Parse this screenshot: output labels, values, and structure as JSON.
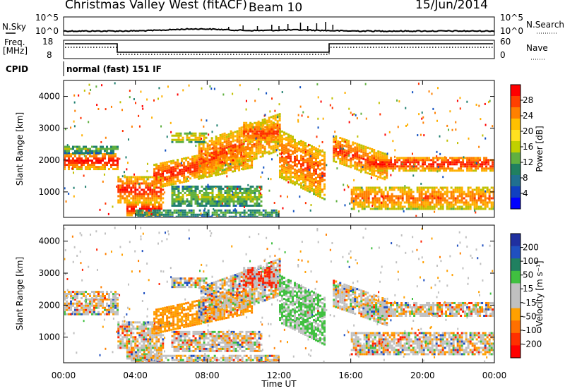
{
  "header": {
    "station": "Christmas Valley West (fitACF)",
    "beam": "Beam 10",
    "date": "15/Jun/2014"
  },
  "top_panels": {
    "nsky_label": "N.Sky",
    "nsky_ticks": [
      "10^5",
      "10^0"
    ],
    "nsearch_label": "N.Search",
    "nsearch_ticks": [
      "10^5",
      "10^0"
    ],
    "freq_label_line1": "Freq.",
    "freq_label_line2": "[MHz]",
    "freq_ticks": [
      "18",
      "8"
    ],
    "nave_label": "Nave",
    "nave_ticks": [
      "60",
      "0"
    ],
    "cpid_label": "CPID",
    "cpid_text": "normal (fast) 151 IF"
  },
  "chart_data": [
    {
      "type": "heatmap",
      "name": "power",
      "ylabel": "Slant Range [km]",
      "yticks": [
        "1000",
        "2000",
        "3000",
        "4000"
      ],
      "ylim": [
        200,
        4500
      ],
      "xlim": [
        "00:00",
        "24:00"
      ],
      "colorbar_label": "Power [dB]",
      "colorbar_ticks": [
        "28",
        "24",
        "20",
        "16",
        "12",
        "8",
        "4"
      ],
      "colorbar_colors": [
        "#ff0000",
        "#ff4000",
        "#ff8000",
        "#ffc000",
        "#ffe020",
        "#c0d000",
        "#60b040",
        "#208060",
        "#207090",
        "#1040c0",
        "#0000ff"
      ]
    },
    {
      "type": "heatmap",
      "name": "velocity",
      "ylabel": "Slant Range [km]",
      "yticks": [
        "1000",
        "2000",
        "3000",
        "4000"
      ],
      "ylim": [
        200,
        4500
      ],
      "xlabel": "Time UT",
      "xticks": [
        "00:00",
        "04:00",
        "08:00",
        "12:00",
        "16:00",
        "20:00",
        "00:00"
      ],
      "colorbar_label": "Velocity [m s⁻¹]",
      "colorbar_ticks": [
        "200",
        "100",
        "50",
        "15",
        "-15",
        "-50",
        "-100",
        "-200"
      ],
      "colorbar_colors": [
        "#2030a0",
        "#2050c0",
        "#208060",
        "#40c040",
        "#c0c0c0",
        "#c0c0c0",
        "#ffa000",
        "#ff7000",
        "#ff3000",
        "#ff0000"
      ]
    }
  ]
}
